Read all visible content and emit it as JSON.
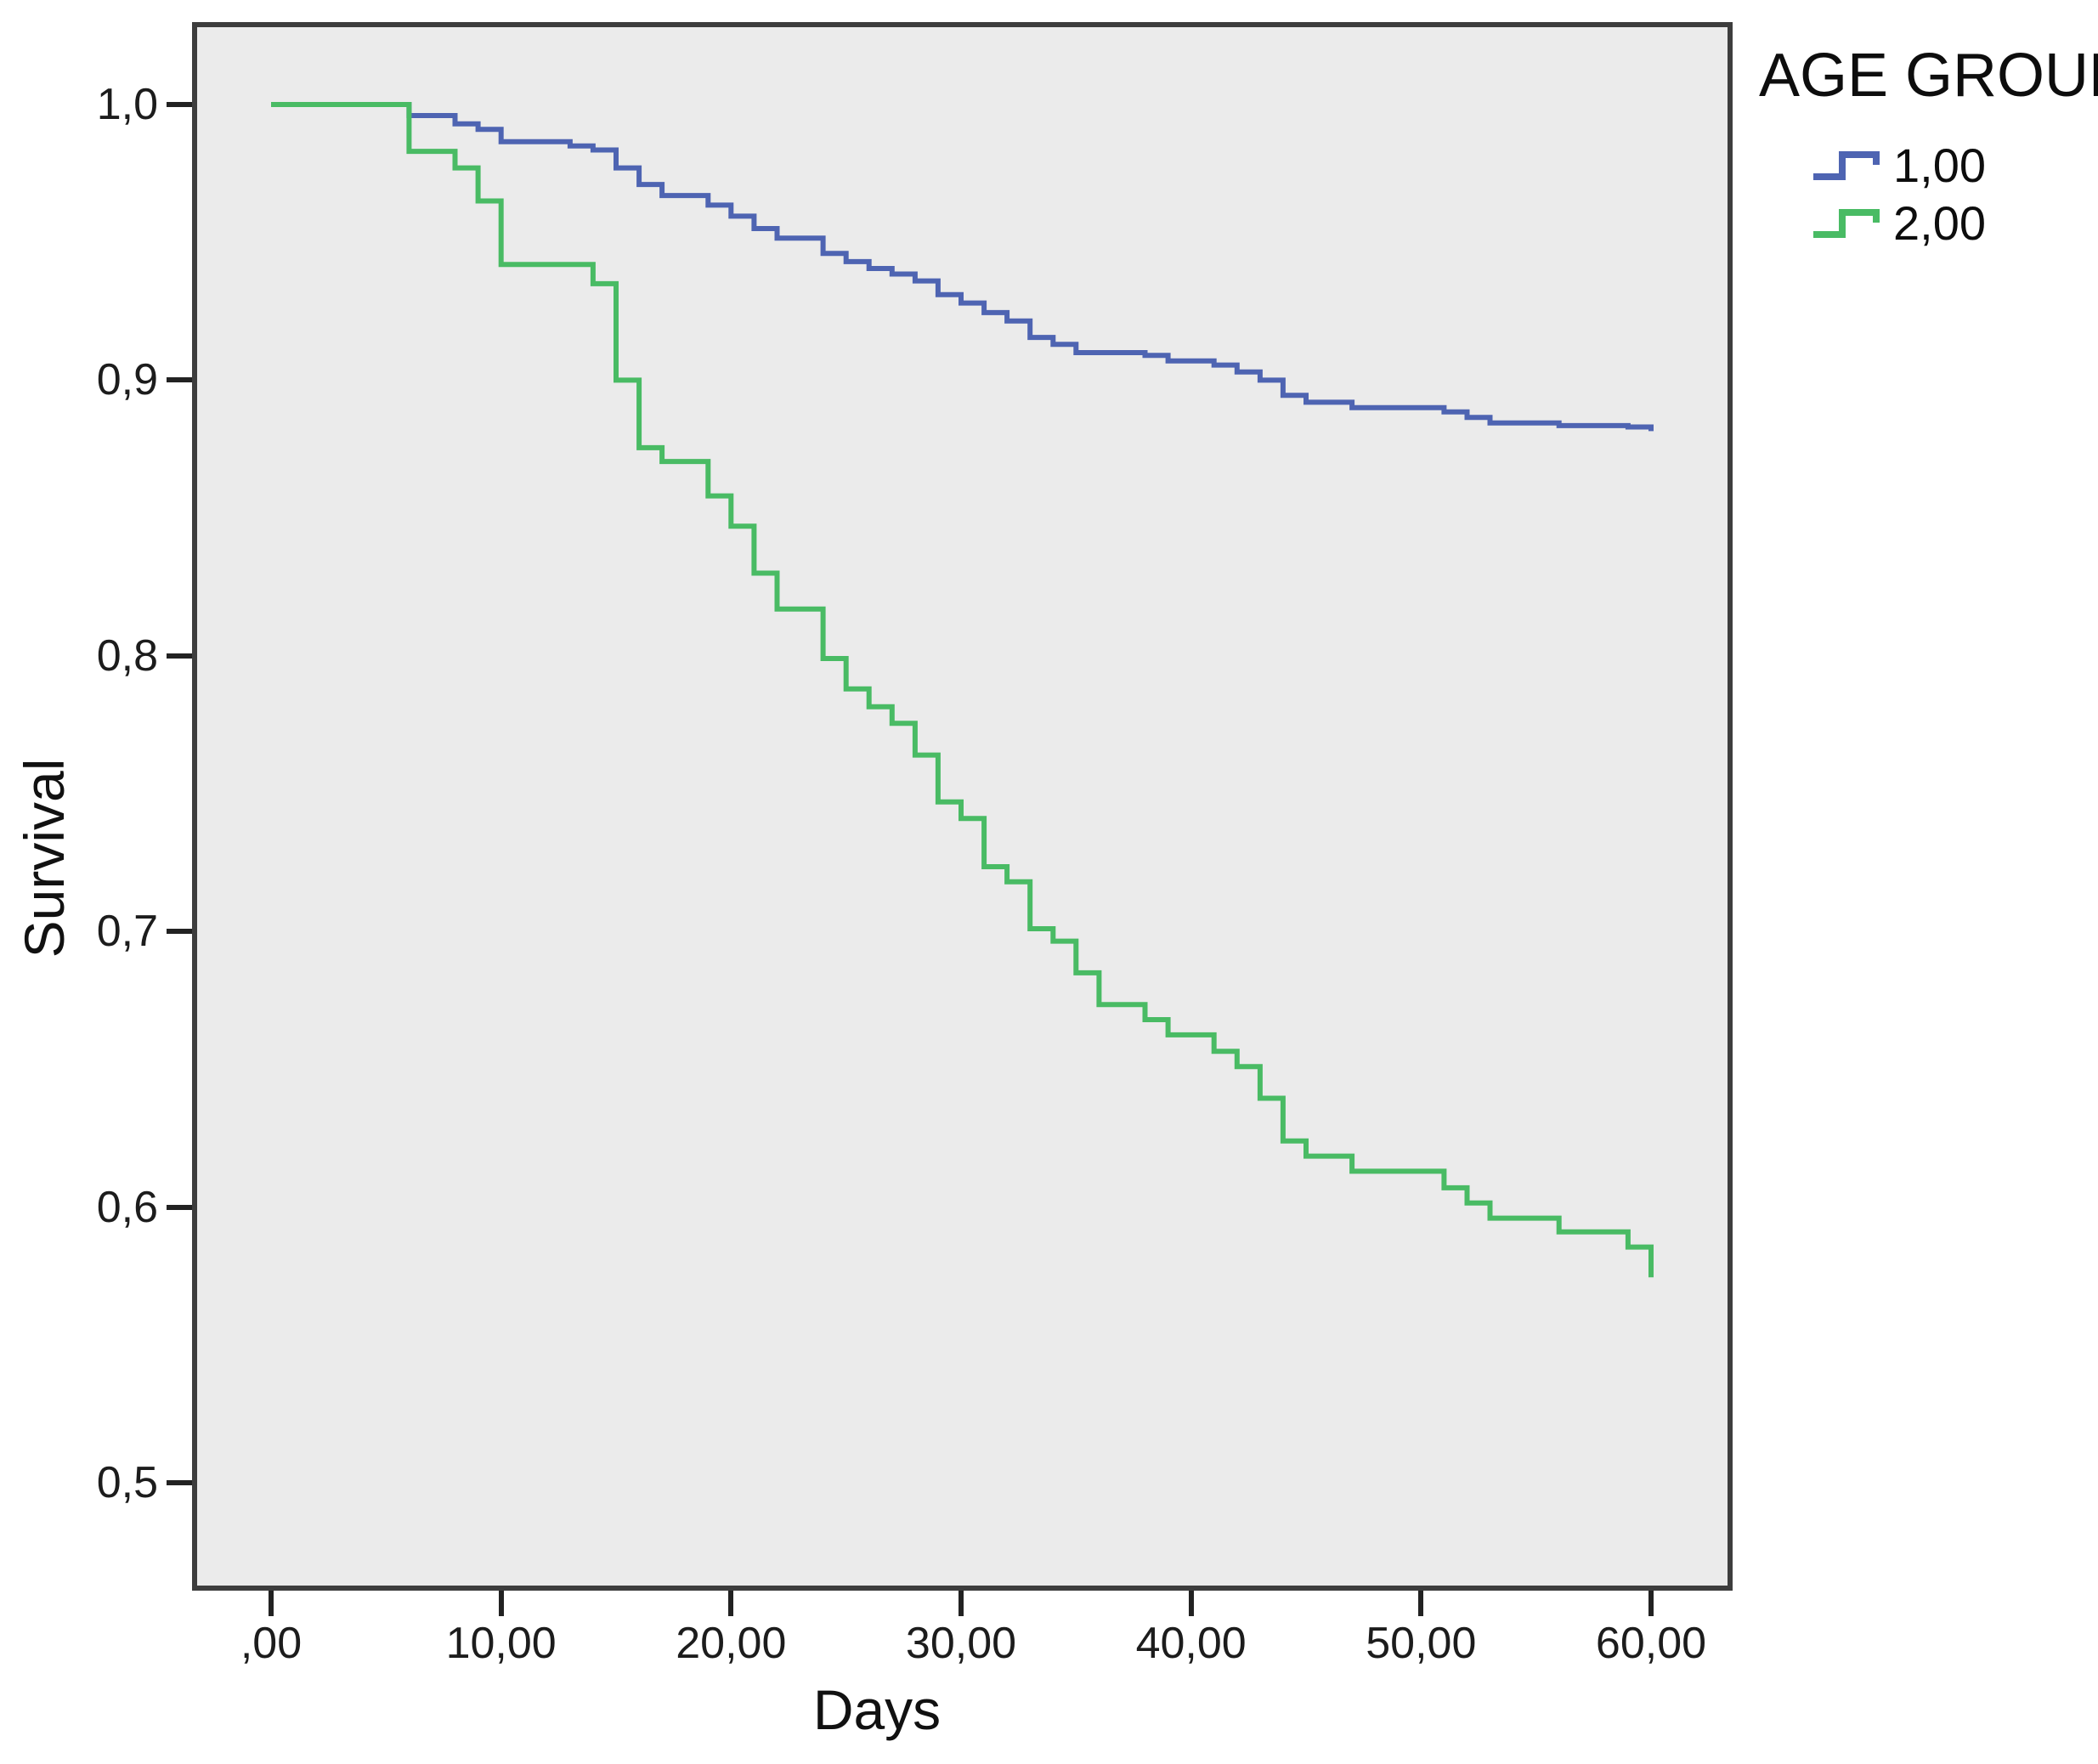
{
  "chart_data": {
    "type": "line",
    "variant": "kaplan-meier-step-survival",
    "title": "",
    "xlabel": "Days",
    "ylabel": "Survival",
    "legend_title": "AGE GROUP",
    "legend_position": "top-right-outside",
    "grid": false,
    "xlim": [
      0,
      60
    ],
    "ylim": [
      0.5,
      1.0
    ],
    "plot_bg": "#ebebeb",
    "frame_color": "#3d3d3d",
    "x_ticks": [
      {
        "label": ",00",
        "value": 0
      },
      {
        "label": "10,00",
        "value": 10
      },
      {
        "label": "20,00",
        "value": 20
      },
      {
        "label": "30,00",
        "value": 30
      },
      {
        "label": "40,00",
        "value": 40
      },
      {
        "label": "50,00",
        "value": 50
      },
      {
        "label": "60,00",
        "value": 60
      }
    ],
    "y_ticks": [
      {
        "label": "1,0",
        "value": 1.0
      },
      {
        "label": "0,9",
        "value": 0.9
      },
      {
        "label": "0,8",
        "value": 0.8
      },
      {
        "label": "0,7",
        "value": 0.7
      },
      {
        "label": "0,6",
        "value": 0.6
      },
      {
        "label": "0,5",
        "value": 0.5
      }
    ],
    "series": [
      {
        "name": "1,00",
        "color": "#4e64b2",
        "points": [
          [
            0,
            1
          ],
          [
            6,
            0.996
          ],
          [
            8,
            0.993
          ],
          [
            9,
            0.991
          ],
          [
            10,
            0.9865
          ],
          [
            13,
            0.985
          ],
          [
            14,
            0.9835
          ],
          [
            15,
            0.977
          ],
          [
            16,
            0.971
          ],
          [
            17,
            0.967
          ],
          [
            19,
            0.9635
          ],
          [
            20,
            0.9595
          ],
          [
            21,
            0.955
          ],
          [
            22,
            0.9515
          ],
          [
            24,
            0.946
          ],
          [
            25,
            0.943
          ],
          [
            26,
            0.9405
          ],
          [
            27,
            0.9385
          ],
          [
            28,
            0.936
          ],
          [
            29,
            0.931
          ],
          [
            30,
            0.928
          ],
          [
            31,
            0.9245
          ],
          [
            32,
            0.9215
          ],
          [
            33,
            0.9155
          ],
          [
            34,
            0.913
          ],
          [
            35,
            0.91
          ],
          [
            38,
            0.909
          ],
          [
            39,
            0.907
          ],
          [
            41,
            0.9055
          ],
          [
            42,
            0.903
          ],
          [
            43,
            0.9
          ],
          [
            44,
            0.8945
          ],
          [
            45,
            0.892
          ],
          [
            47,
            0.89
          ],
          [
            51,
            0.8885
          ],
          [
            52,
            0.8865
          ],
          [
            53,
            0.8845
          ],
          [
            56,
            0.8835
          ],
          [
            59,
            0.883
          ],
          [
            60,
            0.8815
          ]
        ]
      },
      {
        "name": "2,00",
        "color": "#49bb64",
        "points": [
          [
            0,
            1
          ],
          [
            6,
            0.983
          ],
          [
            8,
            0.977
          ],
          [
            9,
            0.965
          ],
          [
            10,
            0.942
          ],
          [
            14,
            0.935
          ],
          [
            15,
            0.9
          ],
          [
            16,
            0.8755
          ],
          [
            17,
            0.8705
          ],
          [
            19,
            0.858
          ],
          [
            20,
            0.847
          ],
          [
            21,
            0.83
          ],
          [
            22,
            0.817
          ],
          [
            24,
            0.799
          ],
          [
            25,
            0.788
          ],
          [
            26,
            0.7815
          ],
          [
            27,
            0.7755
          ],
          [
            28,
            0.764
          ],
          [
            29,
            0.747
          ],
          [
            30,
            0.741
          ],
          [
            31,
            0.7235
          ],
          [
            32,
            0.718
          ],
          [
            33,
            0.701
          ],
          [
            34,
            0.6965
          ],
          [
            35,
            0.685
          ],
          [
            36,
            0.6735
          ],
          [
            38,
            0.668
          ],
          [
            39,
            0.6625
          ],
          [
            41,
            0.6565
          ],
          [
            42,
            0.651
          ],
          [
            43,
            0.6395
          ],
          [
            44,
            0.624
          ],
          [
            45,
            0.6185
          ],
          [
            47,
            0.613
          ],
          [
            51,
            0.607
          ],
          [
            52,
            0.6015
          ],
          [
            53,
            0.596
          ],
          [
            56,
            0.591
          ],
          [
            59,
            0.5855
          ],
          [
            60,
            0.5745
          ]
        ]
      }
    ]
  }
}
